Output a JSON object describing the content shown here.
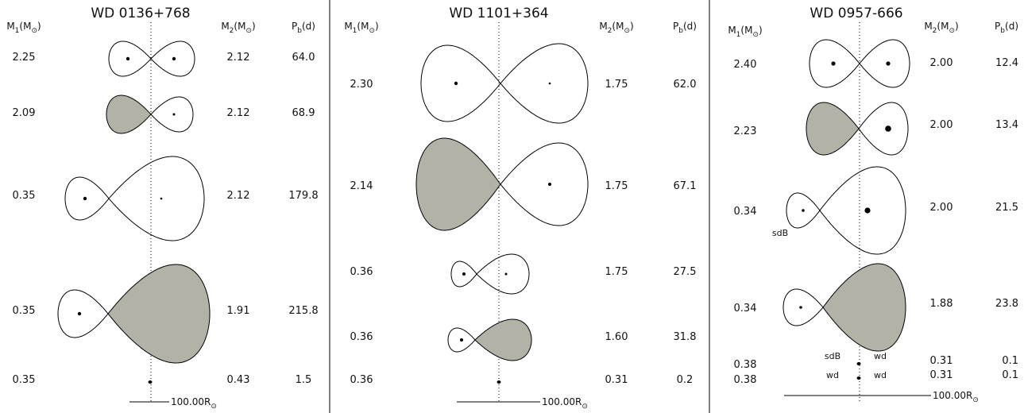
{
  "panels": [
    {
      "title": "WD 0136+768",
      "headers": {
        "m1": [
          "M",
          "1",
          "(M",
          "⊙",
          ")"
        ],
        "m2": [
          "M",
          "2",
          "(M",
          "⊙",
          ")"
        ],
        "pb": [
          "P",
          "b",
          "(d)"
        ]
      },
      "rows": [
        {
          "m1": "2.25",
          "m2": "2.12",
          "pb": "64.0"
        },
        {
          "m1": "2.09",
          "m2": "2.12",
          "pb": "68.9"
        },
        {
          "m1": "0.35",
          "m2": "2.12",
          "pb": "179.8"
        },
        {
          "m1": "0.35",
          "m2": "1.91",
          "pb": "215.8"
        },
        {
          "m1": "0.35",
          "m2": "0.43",
          "pb": "1.5"
        }
      ],
      "scale": [
        "100.00R",
        "⊙"
      ]
    },
    {
      "title": "WD 1101+364",
      "headers": {
        "m1": [
          "M",
          "1",
          "(M",
          "⊙",
          ")"
        ],
        "m2": [
          "M",
          "2",
          "(M",
          "⊙",
          ")"
        ],
        "pb": [
          "P",
          "b",
          "(d)"
        ]
      },
      "rows": [
        {
          "m1": "2.30",
          "m2": "1.75",
          "pb": "62.0"
        },
        {
          "m1": "2.14",
          "m2": "1.75",
          "pb": "67.1"
        },
        {
          "m1": "0.36",
          "m2": "1.75",
          "pb": "27.5"
        },
        {
          "m1": "0.36",
          "m2": "1.60",
          "pb": "31.8"
        },
        {
          "m1": "0.36",
          "m2": "0.31",
          "pb": "0.2"
        }
      ],
      "scale": [
        "100.00R",
        "⊙"
      ]
    },
    {
      "title": "WD 0957-666",
      "headers": {
        "m1": [
          "M",
          "1",
          "(M",
          "⊙",
          ")"
        ],
        "m2": [
          "M",
          "2",
          "(M",
          "⊙",
          ")"
        ],
        "pb": [
          "P",
          "b",
          "(d)"
        ]
      },
      "rows": [
        {
          "m1": "2.40",
          "m2": "2.00",
          "pb": "12.4"
        },
        {
          "m1": "2.23",
          "m2": "2.00",
          "pb": "13.4"
        },
        {
          "m1": "0.34",
          "m2": "2.00",
          "pb": "21.5"
        },
        {
          "m1": "0.34",
          "m2": "1.88",
          "pb": "23.8"
        },
        {
          "m1": "0.38",
          "m2": "0.31",
          "pb": "0.1"
        },
        {
          "m1": "0.38",
          "m2": "0.31",
          "pb": "0.1"
        }
      ],
      "annotations": [
        "sdB",
        "sdB",
        "wd",
        "wd",
        "wd"
      ],
      "scale": [
        "100.00R",
        "⊙"
      ]
    }
  ]
}
